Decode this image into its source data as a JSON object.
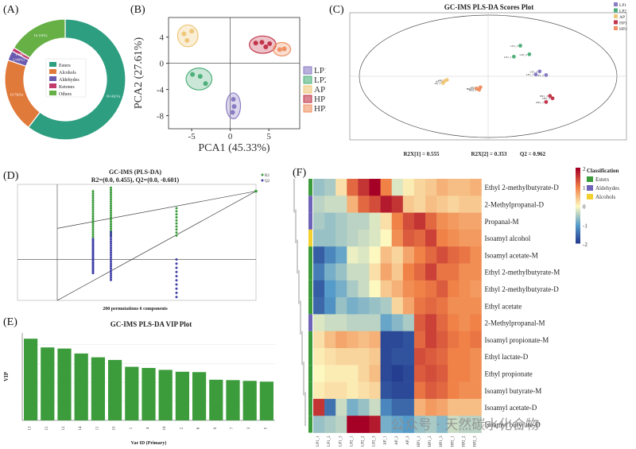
{
  "panels": {
    "a": "(A)",
    "b": "(B)",
    "c": "(C)",
    "d": "(D)",
    "e": "(E)",
    "f": "(F)"
  },
  "colors": {
    "esters": "#2e9e80",
    "alcohols": "#e07a3b",
    "aldehydes": "#6b5bb0",
    "ketones": "#c23b6e",
    "others": "#66b046",
    "LP1": "#8a7cc4",
    "LP2": "#4fb07c",
    "AP": "#efc77a",
    "HP1": "#c2354a",
    "HP2": "#ef9163",
    "green": "#3c9c3c"
  },
  "chart_data": [
    {
      "id": "A",
      "type": "pie",
      "labels": [
        "Esters",
        "Alcohols",
        "Aldehydes",
        "Ketones",
        "Others"
      ],
      "values": [
        60.42,
        19.79,
        2.6,
        1.04,
        16.15
      ],
      "slice_labels": [
        "60.42(%)",
        "19.79(%)",
        "2.60(%)",
        "1.04(%)",
        "16.15(%)"
      ]
    },
    {
      "id": "B",
      "type": "scatter",
      "xlabel": "PCA1 (45.33%)",
      "ylabel": "PCA2 (27.61%)",
      "xlim": [
        -8,
        9
      ],
      "ylim": [
        -10,
        7
      ],
      "xticks": [
        "-5",
        "0",
        "5"
      ],
      "yticks": [
        "4",
        "0",
        "-4",
        "-8"
      ],
      "legend": [
        "LP1",
        "LP2",
        "AP",
        "HP1",
        "HP2"
      ],
      "series": [
        {
          "name": "LP1",
          "points": [
            [
              0.4,
              -5.5
            ],
            [
              0.5,
              -6.6
            ],
            [
              0.3,
              -7.5
            ]
          ]
        },
        {
          "name": "LP2",
          "points": [
            [
              -4.9,
              -1.7
            ],
            [
              -3.9,
              -2.0
            ],
            [
              -3.2,
              -3.1
            ]
          ]
        },
        {
          "name": "AP",
          "points": [
            [
              -6.0,
              4.5
            ],
            [
              -5.6,
              3.5
            ],
            [
              -5.0,
              4.9
            ]
          ]
        },
        {
          "name": "HP1",
          "points": [
            [
              3.3,
              3.1
            ],
            [
              4.1,
              3.2
            ],
            [
              5.1,
              3.0
            ],
            [
              4.6,
              2.5
            ]
          ]
        },
        {
          "name": "HP2",
          "points": [
            [
              6.4,
              2.1
            ],
            [
              7.0,
              2.2
            ]
          ]
        }
      ]
    },
    {
      "id": "C",
      "type": "scatter",
      "title": "GC-IMS PLS-DA Scores Plot",
      "footer": [
        "R2X[1] = 0.555",
        "R2X[2] = 0.353",
        "Q2 = 0.962"
      ],
      "legend": [
        "LP1",
        "LP2",
        "AP",
        "HP1",
        "HP2"
      ],
      "xlim": [
        -10,
        10
      ],
      "ylim": [
        -10,
        10
      ],
      "series": [
        {
          "name": "LP2",
          "points": [
            [
              2.5,
              5.0
            ],
            [
              3.2,
              3.6
            ],
            [
              2.0,
              3.2
            ]
          ],
          "labels": [
            "LP2_3",
            "LP2_2",
            "LP2_1"
          ]
        },
        {
          "name": "LP1",
          "points": [
            [
              4.0,
              0.8
            ],
            [
              4.5,
              0.2
            ],
            [
              3.7,
              0.3
            ]
          ],
          "labels": [
            "LP1_3",
            "LP1_2",
            "LP1_1"
          ]
        },
        {
          "name": "AP",
          "points": [
            [
              -3.2,
              -0.6
            ],
            [
              -3.4,
              -0.8
            ],
            [
              -3.5,
              -1.1
            ]
          ],
          "labels": [
            "AP_3",
            "AP_2",
            "AP_1"
          ]
        },
        {
          "name": "HP2",
          "points": [
            [
              -0.6,
              -1.8
            ],
            [
              -0.9,
              -2.0
            ],
            [
              -0.7,
              -2.2
            ]
          ],
          "labels": [
            "HP2_3",
            "HP2_2",
            "HP2_1"
          ]
        },
        {
          "name": "HP1",
          "points": [
            [
              4.8,
              -3.2
            ],
            [
              5.0,
              -3.6
            ],
            [
              4.5,
              -4.2
            ]
          ],
          "labels": [
            "HP1_3",
            "HP1_2",
            "HP1_1"
          ]
        }
      ]
    },
    {
      "id": "D",
      "type": "scatter",
      "title": "GC-IMS (PLS-DA)",
      "subtitle": "R2=(0.0, 0.455), Q2=(0.0, -0.601)",
      "xlabel": "200 permutations 6 components",
      "legend": [
        "R2",
        "Q2"
      ],
      "xlim": [
        -0.2,
        1.0
      ],
      "ylim": [
        -0.6,
        1.1
      ],
      "R2_line": [
        [
          0,
          0.455
        ],
        [
          1,
          1
        ]
      ],
      "Q2_line": [
        [
          0,
          -0.601
        ],
        [
          1,
          1
        ]
      ]
    },
    {
      "id": "E",
      "type": "bar",
      "title": "GC-IMS PLS-DA VIP Plot",
      "xlabel": "Var ID (Primary)",
      "ylabel": "VIP",
      "categories": [
        "13",
        "15",
        "12",
        "14",
        "11",
        "10",
        "1",
        "4",
        "16",
        "2",
        "6",
        "9",
        "7",
        "3",
        "5"
      ],
      "values": [
        2.15,
        1.92,
        1.89,
        1.76,
        1.66,
        1.59,
        1.41,
        1.38,
        1.33,
        1.28,
        1.27,
        1.07,
        1.06,
        1.04,
        1.02
      ],
      "ylim": [
        0,
        2.3
      ]
    },
    {
      "id": "F",
      "type": "heatmap",
      "rows": [
        "Ethyl 2-methylbutyrate-D",
        "2-Methylpropanal-D",
        "Propanal-M",
        "Isoamyl alcohol",
        "Isoamyl acetate-M",
        "Ethyl 2-methylbutyrate-M",
        "Ethyl 2-methylbutyrate-D",
        "Ethyl acetate",
        "2-Methylpropanal-M",
        "Isoamyl propionate-M",
        "Ethyl lactate-D",
        "Ethyl propionate",
        "Isoamyl butyrate-M",
        "Isoamyl acetate-D",
        "Isoamyl butyrate-D"
      ],
      "row_class": [
        "Esters",
        "Aldehydes",
        "Aldehydes",
        "Alcohols",
        "Esters",
        "Esters",
        "Esters",
        "Esters",
        "Aldehydes",
        "Esters",
        "Esters",
        "Esters",
        "Esters",
        "Esters",
        "Esters"
      ],
      "columns": [
        "LP1_1",
        "LP1_2",
        "LP1_3",
        "LP2_1",
        "LP2_2",
        "LP2_3",
        "AP_1",
        "AP_2",
        "AP_3",
        "HP1_1",
        "HP1_2",
        "HP1_3",
        "HP2_1",
        "HP2_2",
        "HP2_3"
      ],
      "legend_title": "Classification",
      "legend": [
        "Esters",
        "Aldehydes",
        "Alcohols"
      ],
      "scale_ticks": [
        "2",
        "1",
        "0",
        "-1",
        "-2"
      ],
      "values": [
        [
          -0.6,
          -0.5,
          0.2,
          1.2,
          1.6,
          2.2,
          1.0,
          -0.2,
          0.1,
          0.3,
          0.4,
          0.6,
          0.5,
          0.5,
          0.6
        ],
        [
          -0.4,
          -0.3,
          -0.3,
          0.6,
          1.2,
          1.4,
          1.8,
          1.6,
          0.4,
          0.3,
          0.5,
          0.4,
          0.3,
          0.4,
          0.4
        ],
        [
          -0.5,
          -0.6,
          -0.5,
          -0.4,
          -0.4,
          -0.2,
          0.2,
          1.0,
          1.4,
          1.6,
          1.2,
          0.9,
          0.8,
          0.7,
          0.7
        ],
        [
          -0.6,
          -0.6,
          -0.5,
          -0.4,
          -0.3,
          -0.2,
          0.0,
          0.9,
          1.3,
          1.2,
          1.5,
          1.0,
          0.9,
          0.8,
          0.8
        ],
        [
          -1.6,
          -1.2,
          -0.9,
          -0.1,
          -0.2,
          0.0,
          0.5,
          0.3,
          0.7,
          1.0,
          1.2,
          1.4,
          1.2,
          1.1,
          0.9
        ],
        [
          -1.3,
          -0.8,
          -0.6,
          -0.3,
          -0.3,
          0.2,
          0.7,
          0.4,
          1.0,
          1.2,
          1.5,
          1.1,
          1.1,
          0.9,
          0.9
        ],
        [
          -1.6,
          -1.0,
          -0.8,
          -0.5,
          -0.3,
          0.0,
          0.4,
          0.6,
          0.9,
          1.0,
          1.1,
          1.3,
          1.0,
          0.9,
          0.8
        ],
        [
          -1.5,
          -1.1,
          -0.6,
          -0.8,
          -0.7,
          -0.6,
          -0.5,
          0.3,
          0.7,
          1.1,
          1.2,
          1.1,
          0.9,
          0.9,
          0.9
        ],
        [
          -0.2,
          -0.3,
          -0.3,
          -0.4,
          -0.4,
          -0.4,
          -0.9,
          -0.7,
          -0.5,
          1.3,
          1.5,
          1.2,
          1.0,
          0.9,
          1.0
        ],
        [
          0.2,
          0.5,
          0.7,
          0.6,
          0.5,
          0.6,
          -1.8,
          -1.8,
          -1.7,
          1.2,
          1.5,
          1.3,
          1.1,
          1.0,
          1.1
        ],
        [
          0.1,
          0.2,
          0.3,
          0.3,
          0.3,
          0.4,
          -1.8,
          -1.7,
          -1.7,
          1.4,
          1.3,
          1.2,
          1.0,
          1.0,
          0.9
        ],
        [
          0.0,
          0.1,
          0.1,
          0.1,
          0.3,
          0.5,
          -1.8,
          -1.9,
          -1.8,
          1.3,
          1.4,
          1.3,
          1.0,
          1.0,
          0.9
        ],
        [
          0.1,
          0.2,
          0.2,
          0.1,
          0.2,
          0.3,
          -1.7,
          -1.8,
          -1.8,
          1.1,
          1.3,
          1.2,
          1.0,
          0.9,
          0.9
        ],
        [
          1.6,
          -1.4,
          -0.3,
          -0.8,
          -0.6,
          -0.3,
          -1.2,
          -1.5,
          -1.5,
          0.6,
          0.8,
          0.7,
          0.5,
          0.5,
          0.5
        ],
        [
          -0.6,
          -0.5,
          -0.4,
          2.0,
          2.0,
          1.8,
          -0.8,
          -0.9,
          -1.0,
          -0.6,
          -0.5,
          -0.7,
          -0.3,
          -0.4,
          -0.4
        ]
      ]
    }
  ],
  "watermark": "公众号 · 天然碳水化合物"
}
